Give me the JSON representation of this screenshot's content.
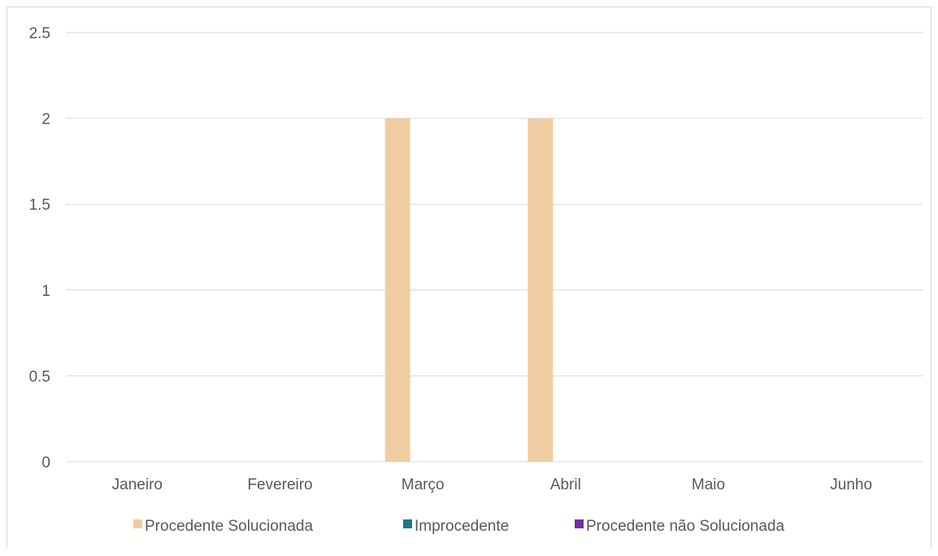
{
  "chart_data": {
    "type": "bar",
    "title": "",
    "xlabel": "",
    "ylabel": "",
    "categories": [
      "Janeiro",
      "Fevereiro",
      "Março",
      "Abril",
      "Maio",
      "Junho"
    ],
    "series": [
      {
        "name": "Procedente Solucionada",
        "color": "#f0cda0",
        "values": [
          0,
          0,
          2,
          2,
          0,
          0
        ]
      },
      {
        "name": "Improcedente",
        "color": "#1f7a86",
        "values": [
          0,
          0,
          0,
          0,
          0,
          0
        ]
      },
      {
        "name": "Procedente não Solucionada",
        "color": "#7030a0",
        "values": [
          0,
          0,
          0,
          0,
          0,
          0
        ]
      }
    ],
    "ylim": [
      0,
      2.5
    ],
    "yticks": [
      "0",
      "0.5",
      "1",
      "1.5",
      "2",
      "2.5"
    ],
    "grid": true,
    "gridColor": "#d9d9d9",
    "axisTextColor": "#595959",
    "legend_position": "bottom"
  }
}
